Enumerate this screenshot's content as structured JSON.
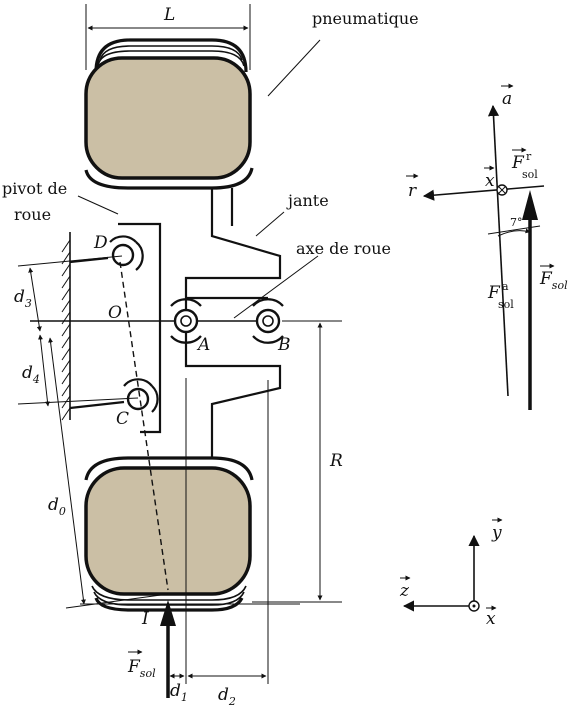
{
  "labels": {
    "pneumatique": "pneumatique",
    "jante": "jante",
    "axe_de_roue": "axe de roue",
    "pivot_line1": "pivot de",
    "pivot_line2": "roue",
    "L": "L",
    "R": "R",
    "O": "O",
    "A": "A",
    "B": "B",
    "C": "C",
    "D": "D",
    "I": "I",
    "d0": "d",
    "d0_sub": "0",
    "d1": "d",
    "d1_sub": "1",
    "d2": "d",
    "d2_sub": "2",
    "d3": "d",
    "d3_sub": "3",
    "d4": "d",
    "d4_sub": "4",
    "F": "F",
    "F_sub": "sol",
    "a": "a",
    "r": "r",
    "x": "x",
    "y": "y",
    "z": "z",
    "Fr_sup": "r",
    "Fa_sup": "a",
    "angle": "7°"
  },
  "colors": {
    "tire_fill": "#cbbfa5",
    "ink": "#111111"
  }
}
